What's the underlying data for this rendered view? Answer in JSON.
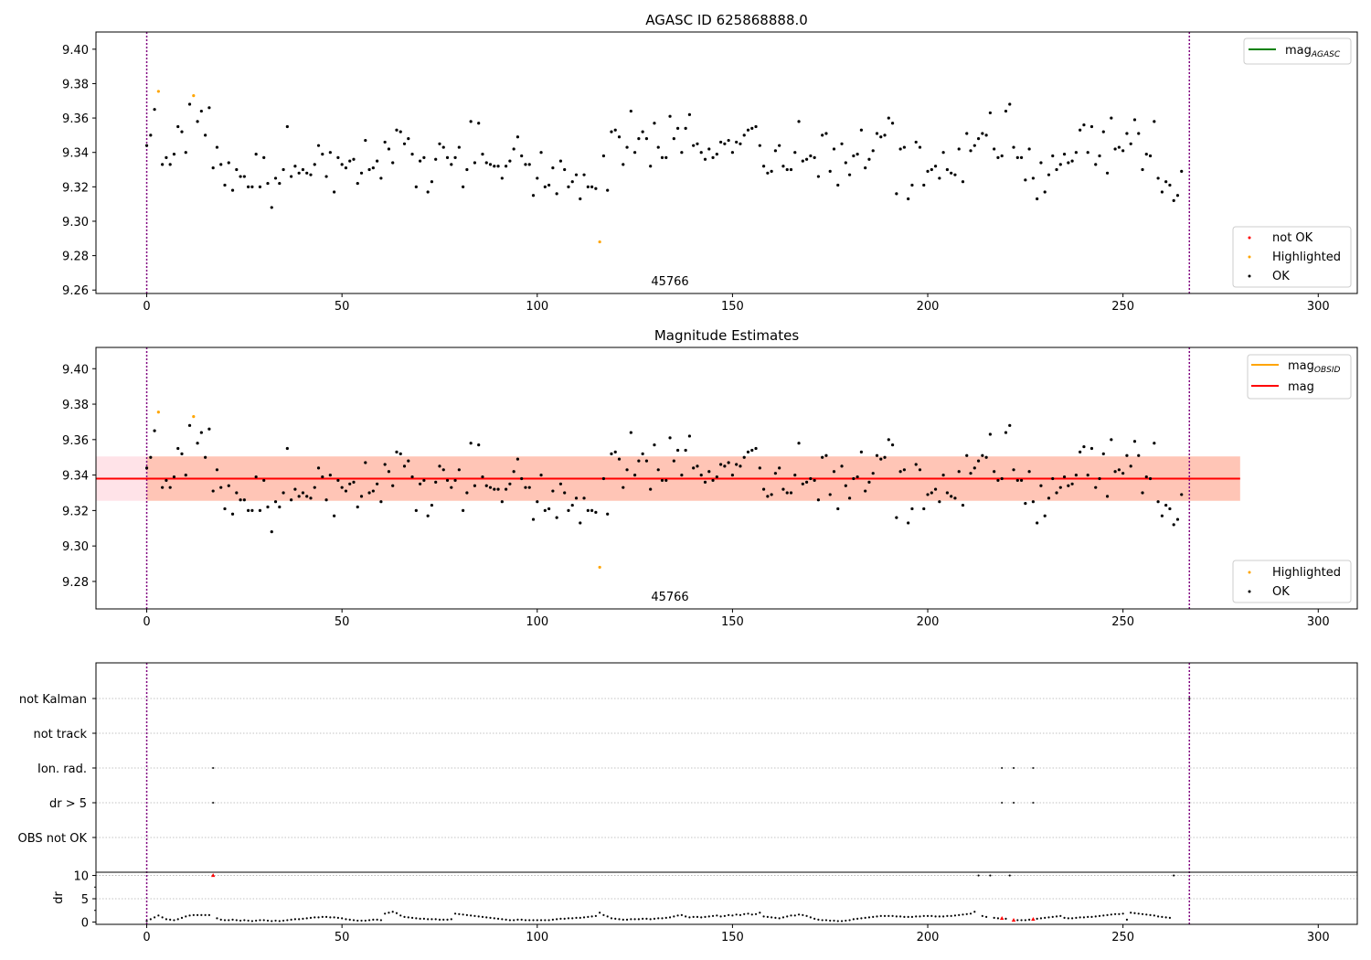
{
  "colors": {
    "ok": "#000000",
    "not_ok": "#ff0000",
    "highlighted": "#ffa500",
    "mag_agasc": "#008000",
    "mag_obsid": "#ffa500",
    "mag": "#ff0000",
    "band_obsid": "#ffa07a",
    "band_mag": "#ffc0cb",
    "obs_boundary": "#800080",
    "grid": "#b0b0b0"
  },
  "obs_boundaries": [
    0,
    267
  ],
  "highlighted_points": [
    {
      "x": 3,
      "y": 9.3755
    },
    {
      "x": 12,
      "y": 9.373
    },
    {
      "x": 116,
      "y": 9.288
    }
  ],
  "chart_data": [
    {
      "type": "scatter",
      "title": "AGASC ID 625868888.0",
      "xlim": [
        -13,
        310
      ],
      "ylim": [
        9.258,
        9.41
      ],
      "xticks": [
        0,
        50,
        100,
        150,
        200,
        250,
        300
      ],
      "yticks": [
        9.26,
        9.28,
        9.3,
        9.32,
        9.34,
        9.36,
        9.38,
        9.4
      ],
      "ytick_labels": [
        "9.26",
        "9.28",
        "9.30",
        "9.32",
        "9.34",
        "9.36",
        "9.38",
        "9.40"
      ],
      "annotation": {
        "text": "45766",
        "x": 133.5,
        "y": 9.2635
      },
      "legend_lines": [
        {
          "label_main": "mag",
          "label_sub": "AGASC",
          "color": "#008000"
        }
      ],
      "legend_points": [
        {
          "label": "not OK",
          "color": "#ff0000"
        },
        {
          "label": "Highlighted",
          "color": "#ffa500"
        },
        {
          "label": "OK",
          "color": "#000000"
        }
      ]
    },
    {
      "type": "scatter",
      "title": "Magnitude Estimates",
      "xlim": [
        -13,
        310
      ],
      "ylim": [
        9.2645,
        9.412
      ],
      "xticks": [
        0,
        50,
        100,
        150,
        200,
        250,
        300
      ],
      "yticks": [
        9.28,
        9.3,
        9.32,
        9.34,
        9.36,
        9.38,
        9.4
      ],
      "ytick_labels": [
        "9.28",
        "9.30",
        "9.32",
        "9.34",
        "9.36",
        "9.38",
        "9.40"
      ],
      "mag_line": {
        "value": 9.338,
        "x_range": [
          -13,
          280
        ]
      },
      "band_obsid": {
        "low": 9.3255,
        "high": 9.3505,
        "x_range": [
          0,
          280
        ]
      },
      "band_mag": {
        "low": 9.3255,
        "high": 9.3505,
        "x_range": [
          -13,
          280
        ]
      },
      "annotation": {
        "text": "45766",
        "x": 133.5,
        "y": 9.27
      },
      "legend_lines": [
        {
          "label_main": "mag",
          "label_sub": "OBSID",
          "color": "#ffa500"
        },
        {
          "label_main": "mag",
          "label_sub": "",
          "color": "#ff0000"
        }
      ],
      "legend_points": [
        {
          "label": "Highlighted",
          "color": "#ffa500"
        },
        {
          "label": "OK",
          "color": "#000000"
        }
      ]
    },
    {
      "type": "scatter",
      "title": "",
      "xlim": [
        -13,
        310
      ],
      "flag_labels": [
        "not Kalman",
        "not track",
        "Ion. rad.",
        "dr > 5",
        "OBS not OK"
      ],
      "flag_points": [
        {
          "flag": "not Kalman",
          "x": [
            267
          ]
        },
        {
          "flag": "not track",
          "x": []
        },
        {
          "flag": "Ion. rad.",
          "x": [
            17,
            219,
            222,
            227
          ]
        },
        {
          "flag": "dr > 5",
          "x": [
            17,
            219,
            222,
            227
          ]
        },
        {
          "flag": "OBS not OK",
          "x": []
        }
      ]
    },
    {
      "type": "scatter",
      "title": "",
      "ylabel": "dr",
      "xlim": [
        -13,
        310
      ],
      "ylim": [
        -0.5,
        10.5
      ],
      "xticks": [
        0,
        50,
        100,
        150,
        200,
        250,
        300
      ],
      "yticks": [
        0,
        5,
        10
      ],
      "ytick_labels": [
        "0",
        "5",
        "10"
      ],
      "dr_outliers_x": [
        17,
        219,
        222,
        227,
        267
      ]
    }
  ],
  "mag_values": [
    9.344,
    9.35,
    9.365,
    9.3755,
    9.333,
    9.337,
    9.333,
    9.339,
    9.355,
    9.352,
    9.34,
    9.368,
    9.373,
    9.358,
    9.364,
    9.35,
    9.366,
    9.331,
    9.343,
    9.333,
    9.321,
    9.334,
    9.318,
    9.33,
    9.326,
    9.326,
    9.32,
    9.32,
    9.339,
    9.32,
    9.337,
    9.322,
    9.308,
    9.325,
    9.322,
    9.33,
    9.355,
    9.326,
    9.332,
    9.328,
    9.33,
    9.328,
    9.327,
    9.333,
    9.344,
    9.339,
    9.326,
    9.34,
    9.317,
    9.337,
    9.333,
    9.331,
    9.335,
    9.336,
    9.322,
    9.328,
    9.347,
    9.33,
    9.331,
    9.335,
    9.325,
    9.346,
    9.342,
    9.334,
    9.353,
    9.352,
    9.345,
    9.348,
    9.339,
    9.32,
    9.335,
    9.337,
    9.317,
    9.323,
    9.336,
    9.345,
    9.343,
    9.337,
    9.333,
    9.337,
    9.343,
    9.32,
    9.33,
    9.358,
    9.334,
    9.357,
    9.339,
    9.334,
    9.333,
    9.332,
    9.332,
    9.325,
    9.332,
    9.335,
    9.342,
    9.349,
    9.338,
    9.333,
    9.333,
    9.315,
    9.325,
    9.34,
    9.32,
    9.321,
    9.331,
    9.316,
    9.335,
    9.33,
    9.32,
    9.323,
    9.327,
    9.313,
    9.327,
    9.32,
    9.32,
    9.319,
    9.288,
    9.338,
    9.318,
    9.352,
    9.353,
    9.349,
    9.333,
    9.343,
    9.364,
    9.34,
    9.348,
    9.352,
    9.348,
    9.332,
    9.357,
    9.343,
    9.337,
    9.337,
    9.361,
    9.348,
    9.354,
    9.34,
    9.354,
    9.362,
    9.344,
    9.345,
    9.34,
    9.336,
    9.342,
    9.337,
    9.339,
    9.346,
    9.345,
    9.347,
    9.34,
    9.346,
    9.345,
    9.35,
    9.353,
    9.354,
    9.355,
    9.344,
    9.332,
    9.328,
    9.329,
    9.341,
    9.344,
    9.332,
    9.33,
    9.33,
    9.34,
    9.358,
    9.335,
    9.336,
    9.338,
    9.337,
    9.326,
    9.35,
    9.351,
    9.329,
    9.342,
    9.321,
    9.345,
    9.334,
    9.327,
    9.338,
    9.339,
    9.353,
    9.331,
    9.336,
    9.341,
    9.351,
    9.349,
    9.35,
    9.36,
    9.357,
    9.316,
    9.342,
    9.343,
    9.313,
    9.321,
    9.346,
    9.343,
    9.321,
    9.329,
    9.33,
    9.332,
    9.325,
    9.34,
    9.33,
    9.328,
    9.327,
    9.342,
    9.323,
    9.351,
    9.341,
    9.344,
    9.348,
    9.351,
    9.35,
    9.363,
    9.342,
    9.337,
    9.338,
    9.364,
    9.368,
    9.343,
    9.337,
    9.337,
    9.324,
    9.342,
    9.325,
    9.313,
    9.334,
    9.317,
    9.327,
    9.338,
    9.33,
    9.333,
    9.339,
    9.334,
    9.335,
    9.34,
    9.353,
    9.356,
    9.34,
    9.355,
    9.333,
    9.338,
    9.352,
    9.328,
    9.36,
    9.342,
    9.343,
    9.341,
    9.351,
    9.345,
    9.359,
    9.351,
    9.33,
    9.339,
    9.338,
    9.358,
    9.325,
    9.317,
    9.323,
    9.321,
    9.312,
    9.315,
    9.329
  ],
  "dr_values": [
    0.2,
    0.6,
    1.0,
    1.4,
    1.0,
    0.6,
    0.5,
    0.4,
    0.6,
    0.9,
    1.2,
    1.4,
    1.5,
    1.5,
    1.5,
    1.5,
    1.5,
    10.0,
    0.8,
    0.5,
    0.4,
    0.4,
    0.5,
    0.4,
    0.3,
    0.4,
    0.3,
    0.2,
    0.3,
    0.4,
    0.4,
    0.3,
    0.2,
    0.3,
    0.2,
    0.3,
    0.4,
    0.5,
    0.6,
    0.6,
    0.7,
    0.8,
    0.9,
    1.0,
    1.0,
    1.1,
    1.1,
    1.0,
    1.0,
    0.9,
    0.8,
    0.6,
    0.5,
    0.4,
    0.3,
    0.3,
    0.3,
    0.4,
    0.5,
    0.5,
    0.4,
    1.8,
    2.0,
    2.2,
    1.9,
    1.4,
    1.1,
    1.0,
    0.9,
    0.8,
    0.7,
    0.7,
    0.6,
    0.6,
    0.6,
    0.5,
    0.5,
    0.5,
    0.6,
    1.8,
    1.7,
    1.6,
    1.5,
    1.4,
    1.3,
    1.2,
    1.1,
    1.0,
    0.9,
    0.8,
    0.7,
    0.6,
    0.5,
    0.4,
    0.4,
    0.5,
    0.5,
    0.4,
    0.4,
    0.4,
    0.4,
    0.4,
    0.4,
    0.4,
    0.5,
    0.6,
    0.7,
    0.7,
    0.8,
    0.8,
    0.9,
    0.9,
    1.0,
    1.1,
    1.2,
    1.3,
    2.0,
    1.5,
    1.2,
    0.8,
    0.7,
    0.6,
    0.5,
    0.5,
    0.6,
    0.6,
    0.6,
    0.7,
    0.7,
    0.6,
    0.7,
    0.8,
    0.8,
    0.9,
    1.0,
    1.2,
    1.4,
    1.5,
    1.2,
    1.0,
    1.1,
    1.1,
    1.0,
    1.1,
    1.2,
    1.3,
    1.4,
    1.2,
    1.3,
    1.5,
    1.4,
    1.6,
    1.5,
    1.7,
    1.8,
    1.6,
    1.7,
    2.0,
    1.2,
    1.1,
    1.0,
    0.9,
    0.8,
    1.0,
    1.2,
    1.4,
    1.4,
    1.6,
    1.5,
    1.3,
    1.0,
    0.7,
    0.5,
    0.4,
    0.4,
    0.3,
    0.3,
    0.2,
    0.2,
    0.3,
    0.4,
    0.6,
    0.7,
    0.8,
    0.9,
    1.0,
    1.1,
    1.2,
    1.3,
    1.3,
    1.3,
    1.3,
    1.2,
    1.2,
    1.1,
    1.1,
    1.1,
    1.2,
    1.2,
    1.3,
    1.3,
    1.3,
    1.2,
    1.2,
    1.2,
    1.3,
    1.3,
    1.4,
    1.5,
    1.6,
    1.7,
    1.8,
    2.2,
    10.0,
    1.3,
    1.1,
    10.0,
    0.9,
    0.8,
    0.8,
    0.7,
    10.0,
    0.4,
    0.4,
    0.4,
    0.4,
    0.5,
    0.6,
    0.7,
    0.8,
    0.9,
    1.0,
    1.1,
    1.2,
    1.3,
    0.9,
    0.8,
    0.8,
    0.9,
    1.0,
    1.0,
    1.1,
    1.1,
    1.2,
    1.3,
    1.4,
    1.5,
    1.6,
    1.7,
    1.7,
    1.8,
    0.5,
    2.0,
    1.9,
    1.8,
    1.7,
    1.6,
    1.5,
    1.4,
    1.2,
    1.1,
    1.0,
    0.9,
    10.0
  ]
}
